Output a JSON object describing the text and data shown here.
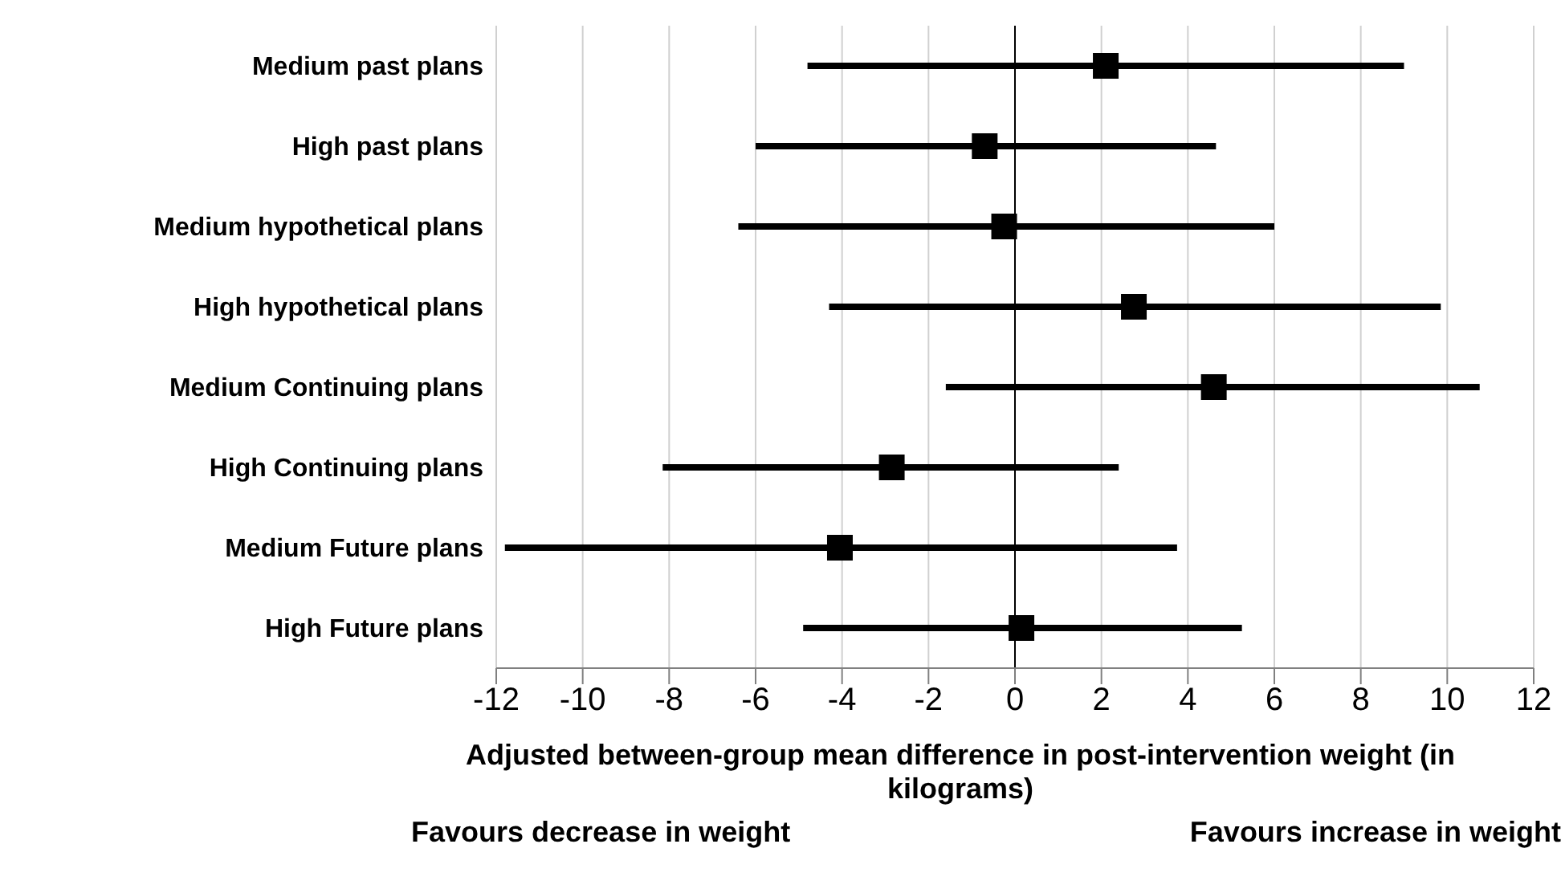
{
  "chart_data": {
    "type": "scatter",
    "orientation": "horizontal",
    "categories": [
      "Medium past plans",
      "High past plans",
      "Medium hypothetical plans",
      "High hypothetical plans",
      "Medium Continuing plans",
      "High Continuing plans",
      "Medium Future plans",
      "High Future plans"
    ],
    "values": [
      2.1,
      -0.7,
      -0.25,
      2.75,
      4.6,
      -2.85,
      -4.05,
      0.15
    ],
    "errors": [
      [
        -4.8,
        9.0
      ],
      [
        -6.0,
        4.65
      ],
      [
        -6.4,
        6.0
      ],
      [
        -4.3,
        9.85
      ],
      [
        -1.6,
        10.75
      ],
      [
        -8.15,
        2.4
      ],
      [
        -11.8,
        3.75
      ],
      [
        -4.9,
        5.25
      ]
    ],
    "color": "#000000",
    "marker": "square",
    "xlim": [
      -12,
      12
    ],
    "xticks": [
      -12,
      -10,
      -8,
      -6,
      -4,
      -2,
      0,
      2,
      4,
      6,
      8,
      10,
      12
    ],
    "grid": "x",
    "ref_lines": [
      {
        "axis": "x",
        "value": 0,
        "color": "#000000"
      }
    ],
    "xlabel": "Adjusted between-group mean difference in  post-intervention weight (in kilograms)",
    "annotations": [
      "Favours decrease in weight",
      "Favours increase in weight"
    ]
  }
}
